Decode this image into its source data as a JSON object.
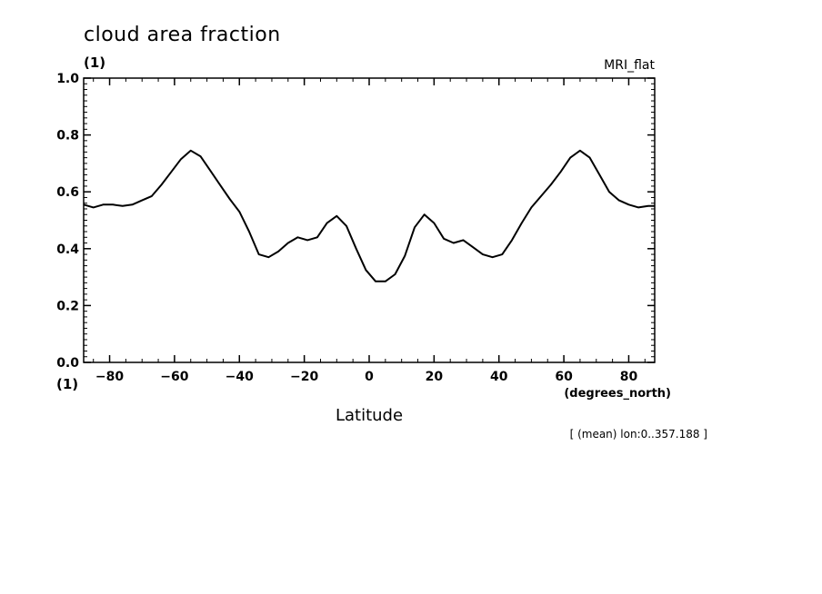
{
  "chart_data": {
    "type": "line",
    "title": "cloud area fraction",
    "y_unit": "(1)",
    "x_corner_unit": "(1)",
    "source_label": "MRI_flat",
    "xlabel": "Latitude",
    "x_unit": "(degrees_north)",
    "note": "[ (mean) lon:0..357.188 ]",
    "xlim": [
      -88,
      88
    ],
    "ylim": [
      0.0,
      1.0
    ],
    "x_ticks": [
      -80,
      -60,
      -40,
      -20,
      0,
      20,
      40,
      60,
      80
    ],
    "x_tick_labels": [
      "−80",
      "−60",
      "−40",
      "−20",
      "0",
      "20",
      "40",
      "60",
      "80"
    ],
    "y_ticks": [
      0.0,
      0.2,
      0.4,
      0.6,
      0.8,
      1.0
    ],
    "y_tick_labels": [
      "0.0",
      "0.2",
      "0.4",
      "0.6",
      "0.8",
      "1.0"
    ],
    "grid": false,
    "series": [
      {
        "x": [
          -88,
          -85,
          -82,
          -79,
          -76,
          -73,
          -70,
          -67,
          -64,
          -61,
          -58,
          -55,
          -52,
          -49,
          -46,
          -43,
          -40,
          -37,
          -34,
          -31,
          -28,
          -25,
          -22,
          -19,
          -16,
          -13,
          -10,
          -7,
          -4,
          -1,
          2,
          5,
          8,
          11,
          14,
          17,
          20,
          23,
          26,
          29,
          32,
          35,
          38,
          41,
          44,
          47,
          50,
          53,
          56,
          59,
          62,
          65,
          68,
          71,
          74,
          77,
          80,
          83,
          86,
          88
        ],
        "y": [
          0.555,
          0.545,
          0.555,
          0.555,
          0.55,
          0.555,
          0.57,
          0.585,
          0.625,
          0.67,
          0.715,
          0.745,
          0.725,
          0.675,
          0.625,
          0.575,
          0.53,
          0.46,
          0.38,
          0.37,
          0.39,
          0.42,
          0.44,
          0.43,
          0.44,
          0.49,
          0.515,
          0.48,
          0.4,
          0.325,
          0.285,
          0.285,
          0.31,
          0.375,
          0.475,
          0.52,
          0.49,
          0.435,
          0.42,
          0.43,
          0.405,
          0.38,
          0.37,
          0.38,
          0.43,
          0.49,
          0.545,
          0.585,
          0.625,
          0.67,
          0.72,
          0.745,
          0.72,
          0.66,
          0.6,
          0.57,
          0.555,
          0.545,
          0.55,
          0.55
        ]
      }
    ]
  }
}
